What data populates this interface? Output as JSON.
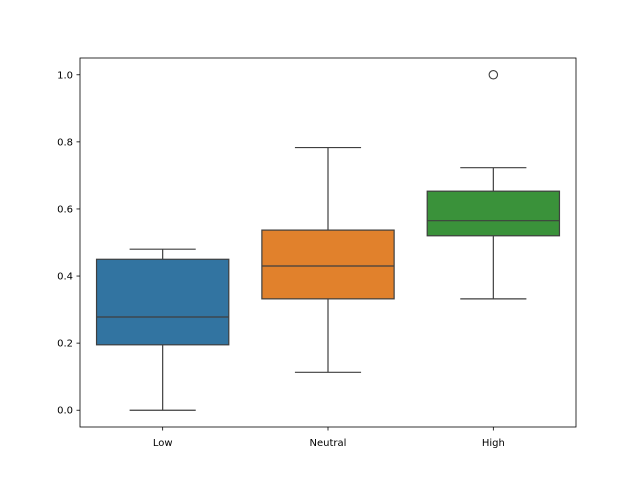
{
  "chart_data": {
    "type": "box",
    "categories": [
      "Low",
      "Neutral",
      "High"
    ],
    "colors": [
      "#3274a1",
      "#e1812c",
      "#3a923a"
    ],
    "boxes": [
      {
        "category": "Low",
        "whisker_low": 0.0,
        "q1": 0.195,
        "median": 0.278,
        "q3": 0.45,
        "whisker_high": 0.48,
        "outliers": []
      },
      {
        "category": "Neutral",
        "whisker_low": 0.113,
        "q1": 0.332,
        "median": 0.43,
        "q3": 0.537,
        "whisker_high": 0.783,
        "outliers": []
      },
      {
        "category": "High",
        "whisker_low": 0.332,
        "q1": 0.52,
        "median": 0.565,
        "q3": 0.653,
        "whisker_high": 0.723,
        "outliers": [
          1.0
        ]
      }
    ],
    "yticks": [
      0.0,
      0.2,
      0.4,
      0.6,
      0.8,
      1.0
    ],
    "ytick_labels": [
      "0.0",
      "0.2",
      "0.4",
      "0.6",
      "0.8",
      "1.0"
    ],
    "ylim": [
      -0.05,
      1.05
    ],
    "title": "",
    "xlabel": "",
    "ylabel": "",
    "grid": false,
    "legend": "none"
  }
}
